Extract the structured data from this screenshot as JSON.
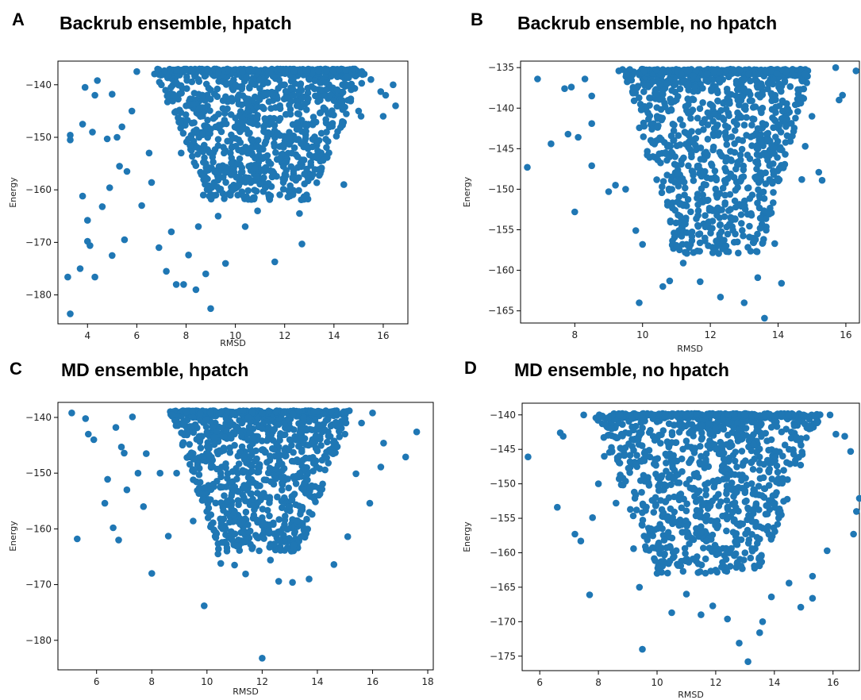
{
  "chart_data": [
    {
      "panel": "A",
      "title": "Backrub ensemble, hpatch",
      "type": "scatter",
      "xlabel": "RMSD",
      "ylabel": "Energy",
      "xlim": [
        2.8,
        17.0
      ],
      "ylim": [
        -185.5,
        -135.5
      ],
      "xticks": [
        4,
        6,
        8,
        10,
        12,
        14,
        16
      ],
      "yticks": [
        -180,
        -170,
        -160,
        -150,
        -140
      ],
      "color": "#1f77b4",
      "points": [
        [
          3.3,
          -183.6
        ],
        [
          3.2,
          -176.6
        ],
        [
          3.3,
          -150.5
        ],
        [
          3.3,
          -149.6
        ],
        [
          3.7,
          -175.0
        ],
        [
          3.8,
          -161.2
        ],
        [
          3.8,
          -147.5
        ],
        [
          3.9,
          -140.5
        ],
        [
          4.0,
          -169.8
        ],
        [
          4.0,
          -165.8
        ],
        [
          4.1,
          -170.6
        ],
        [
          4.2,
          -149.0
        ],
        [
          4.3,
          -176.6
        ],
        [
          4.3,
          -142.0
        ],
        [
          4.4,
          -139.2
        ],
        [
          4.6,
          -163.2
        ],
        [
          4.8,
          -150.3
        ],
        [
          4.9,
          -159.6
        ],
        [
          5.0,
          -172.5
        ],
        [
          5.0,
          -141.8
        ],
        [
          5.2,
          -150.0
        ],
        [
          5.3,
          -155.5
        ],
        [
          5.4,
          -148.0
        ],
        [
          5.5,
          -169.5
        ],
        [
          5.6,
          -156.5
        ],
        [
          5.8,
          -145.0
        ],
        [
          6.0,
          -137.5
        ],
        [
          6.2,
          -163.0
        ],
        [
          6.5,
          -153.0
        ],
        [
          6.6,
          -158.6
        ],
        [
          6.9,
          -171.0
        ],
        [
          7.2,
          -175.5
        ],
        [
          7.4,
          -168.0
        ],
        [
          7.6,
          -178.0
        ],
        [
          7.9,
          -178.0
        ],
        [
          8.1,
          -172.4
        ],
        [
          8.4,
          -179.0
        ],
        [
          8.5,
          -167.0
        ],
        [
          8.7,
          -161.0
        ],
        [
          8.8,
          -176.0
        ],
        [
          9.0,
          -182.6
        ],
        [
          9.3,
          -165.0
        ],
        [
          9.6,
          -174.0
        ],
        [
          9.9,
          -160.0
        ],
        [
          10.4,
          -167.0
        ],
        [
          10.9,
          -164.0
        ],
        [
          11.6,
          -173.7
        ],
        [
          12.0,
          -158.0
        ],
        [
          12.4,
          -152.0
        ],
        [
          12.6,
          -164.5
        ],
        [
          12.7,
          -170.3
        ],
        [
          13.3,
          -151.0
        ],
        [
          13.7,
          -149.0
        ],
        [
          14.4,
          -159.0
        ],
        [
          15.1,
          -146.0
        ],
        [
          15.9,
          -141.3
        ],
        [
          16.1,
          -142.0
        ],
        [
          16.4,
          -140.0
        ],
        [
          16.5,
          -144.0
        ],
        [
          7.0,
          -140.0
        ],
        [
          7.5,
          -142.0
        ],
        [
          8.0,
          -144.0
        ],
        [
          8.5,
          -139.0
        ],
        [
          9.0,
          -141.0
        ],
        [
          9.5,
          -143.0
        ],
        [
          10.0,
          -140.0
        ],
        [
          10.5,
          -145.0
        ],
        [
          11.0,
          -139.0
        ],
        [
          11.5,
          -142.0
        ],
        [
          12.0,
          -140.0
        ],
        [
          12.5,
          -144.0
        ],
        [
          13.0,
          -139.0
        ],
        [
          13.5,
          -141.0
        ],
        [
          14.0,
          -143.0
        ],
        [
          14.5,
          -140.0
        ],
        [
          15.0,
          -145.0
        ],
        [
          15.5,
          -139.0
        ],
        [
          16.0,
          -146.0
        ],
        [
          8.2,
          -150.0
        ],
        [
          9.2,
          -148.0
        ],
        [
          10.2,
          -151.0
        ],
        [
          11.2,
          -149.0
        ],
        [
          12.2,
          -150.0
        ],
        [
          13.2,
          -147.0
        ],
        [
          7.8,
          -153.0
        ],
        [
          8.8,
          -155.0
        ],
        [
          9.8,
          -153.0
        ],
        [
          10.8,
          -156.0
        ],
        [
          11.8,
          -154.0
        ],
        [
          12.8,
          -157.0
        ]
      ],
      "dense_region": {
        "x": [
          6.6,
          15.4
        ],
        "y": [
          -162,
          -137
        ],
        "top_ceiling": -137
      }
    },
    {
      "panel": "B",
      "title": "Backrub ensemble, no hpatch",
      "type": "scatter",
      "xlabel": "RMSD",
      "ylabel": "Energy",
      "xlim": [
        6.4,
        16.4
      ],
      "ylim": [
        -166.5,
        -134.2
      ],
      "xticks": [
        8,
        10,
        12,
        14,
        16
      ],
      "yticks": [
        -165,
        -160,
        -155,
        -150,
        -145,
        -140,
        -135
      ],
      "color": "#1f77b4",
      "points": [
        [
          6.6,
          -147.3
        ],
        [
          6.9,
          -136.4
        ],
        [
          7.3,
          -144.4
        ],
        [
          7.7,
          -137.6
        ],
        [
          7.8,
          -143.2
        ],
        [
          7.9,
          -137.4
        ],
        [
          8.0,
          -152.8
        ],
        [
          8.1,
          -143.6
        ],
        [
          8.3,
          -136.4
        ],
        [
          8.5,
          -147.1
        ],
        [
          8.5,
          -138.5
        ],
        [
          8.5,
          -141.9
        ],
        [
          9.0,
          -150.3
        ],
        [
          9.2,
          -149.5
        ],
        [
          9.3,
          -135.4
        ],
        [
          9.5,
          -150.0
        ],
        [
          9.8,
          -155.1
        ],
        [
          9.9,
          -164.0
        ],
        [
          10.0,
          -156.8
        ],
        [
          10.6,
          -162.0
        ],
        [
          10.8,
          -161.3
        ],
        [
          11.2,
          -159.1
        ],
        [
          11.7,
          -161.4
        ],
        [
          12.3,
          -163.3
        ],
        [
          12.8,
          -156.5
        ],
        [
          13.0,
          -164.0
        ],
        [
          13.4,
          -160.9
        ],
        [
          13.6,
          -165.9
        ],
        [
          13.9,
          -156.7
        ],
        [
          14.1,
          -161.6
        ],
        [
          14.7,
          -148.8
        ],
        [
          14.8,
          -144.7
        ],
        [
          15.2,
          -147.9
        ],
        [
          15.3,
          -148.9
        ],
        [
          15.7,
          -135.0
        ],
        [
          15.8,
          -139.0
        ],
        [
          15.9,
          -138.4
        ],
        [
          16.3,
          -135.4
        ],
        [
          10.5,
          -137.0
        ],
        [
          11.0,
          -139.0
        ],
        [
          11.5,
          -136.0
        ],
        [
          12.0,
          -141.0
        ],
        [
          12.5,
          -138.0
        ],
        [
          13.0,
          -140.0
        ],
        [
          13.5,
          -137.0
        ],
        [
          14.0,
          -142.0
        ],
        [
          14.5,
          -136.0
        ],
        [
          15.0,
          -141.0
        ],
        [
          10.8,
          -146.0
        ],
        [
          11.8,
          -148.0
        ],
        [
          12.8,
          -147.0
        ],
        [
          13.8,
          -149.0
        ],
        [
          11.2,
          -152.0
        ],
        [
          12.2,
          -151.0
        ],
        [
          13.2,
          -153.0
        ]
      ],
      "dense_region": {
        "x": [
          9.4,
          15.0
        ],
        "y": [
          -158,
          -135
        ],
        "top_ceiling": -135.2
      }
    },
    {
      "panel": "C",
      "title": "MD ensemble, hpatch",
      "type": "scatter",
      "xlabel": "RMSD",
      "ylabel": "Energy",
      "xlim": [
        4.6,
        18.2
      ],
      "ylim": [
        -185.3,
        -137.3
      ],
      "xticks": [
        6,
        8,
        10,
        12,
        14,
        16,
        18
      ],
      "yticks": [
        -180,
        -170,
        -160,
        -150,
        -140
      ],
      "color": "#1f77b4",
      "points": [
        [
          5.1,
          -139.2
        ],
        [
          5.3,
          -161.8
        ],
        [
          5.6,
          -140.2
        ],
        [
          5.7,
          -143.0
        ],
        [
          5.9,
          -144.0
        ],
        [
          6.3,
          -155.4
        ],
        [
          6.4,
          -151.1
        ],
        [
          6.6,
          -159.8
        ],
        [
          6.7,
          -141.8
        ],
        [
          6.8,
          -162.0
        ],
        [
          6.9,
          -145.3
        ],
        [
          7.0,
          -146.4
        ],
        [
          7.1,
          -153.0
        ],
        [
          7.3,
          -139.9
        ],
        [
          7.5,
          -150.0
        ],
        [
          7.7,
          -156.0
        ],
        [
          7.8,
          -146.5
        ],
        [
          8.0,
          -168.0
        ],
        [
          8.3,
          -150.0
        ],
        [
          8.6,
          -161.3
        ],
        [
          8.9,
          -150.0
        ],
        [
          9.5,
          -158.6
        ],
        [
          9.9,
          -173.8
        ],
        [
          10.4,
          -164.5
        ],
        [
          10.5,
          -166.2
        ],
        [
          11.0,
          -166.5
        ],
        [
          11.4,
          -168.1
        ],
        [
          12.0,
          -183.2
        ],
        [
          12.3,
          -165.6
        ],
        [
          12.6,
          -169.4
        ],
        [
          13.1,
          -169.6
        ],
        [
          13.7,
          -169.0
        ],
        [
          14.6,
          -166.4
        ],
        [
          15.1,
          -161.4
        ],
        [
          15.4,
          -150.1
        ],
        [
          15.9,
          -155.4
        ],
        [
          16.3,
          -148.9
        ],
        [
          16.4,
          -144.6
        ],
        [
          17.2,
          -147.1
        ],
        [
          17.6,
          -142.6
        ],
        [
          16.0,
          -139.2
        ],
        [
          15.6,
          -141.0
        ],
        [
          9.5,
          -140.0
        ],
        [
          10.0,
          -143.0
        ],
        [
          10.5,
          -139.0
        ],
        [
          11.0,
          -145.0
        ],
        [
          11.5,
          -140.0
        ],
        [
          12.0,
          -142.0
        ],
        [
          12.5,
          -139.0
        ],
        [
          13.0,
          -144.0
        ],
        [
          13.5,
          -140.0
        ],
        [
          14.0,
          -146.0
        ],
        [
          14.5,
          -139.0
        ],
        [
          15.0,
          -143.0
        ],
        [
          10.5,
          -150.0
        ],
        [
          11.5,
          -152.0
        ],
        [
          12.5,
          -151.0
        ],
        [
          13.5,
          -153.0
        ],
        [
          11.0,
          -157.0
        ],
        [
          12.0,
          -158.0
        ],
        [
          13.0,
          -156.0
        ]
      ],
      "dense_region": {
        "x": [
          8.6,
          15.2
        ],
        "y": [
          -164,
          -138.8
        ],
        "top_ceiling": -138.8
      }
    },
    {
      "panel": "D",
      "title": "MD ensemble, no hpatch",
      "type": "scatter",
      "xlabel": "RMSD",
      "ylabel": "Energy",
      "xlim": [
        5.4,
        16.9
      ],
      "ylim": [
        -177.1,
        -138.3
      ],
      "xticks": [
        6,
        8,
        10,
        12,
        14,
        16
      ],
      "yticks": [
        -175,
        -170,
        -165,
        -160,
        -155,
        -150,
        -145,
        -140
      ],
      "color": "#1f77b4",
      "points": [
        [
          5.6,
          -146.1
        ],
        [
          6.6,
          -153.4
        ],
        [
          6.7,
          -142.6
        ],
        [
          6.8,
          -143.1
        ],
        [
          7.2,
          -157.3
        ],
        [
          7.4,
          -158.3
        ],
        [
          7.5,
          -140.0
        ],
        [
          7.7,
          -166.1
        ],
        [
          7.8,
          -154.9
        ],
        [
          8.0,
          -150.0
        ],
        [
          8.2,
          -146.0
        ],
        [
          8.6,
          -152.8
        ],
        [
          9.2,
          -159.4
        ],
        [
          9.4,
          -165.0
        ],
        [
          9.5,
          -174.0
        ],
        [
          10.0,
          -163.0
        ],
        [
          10.5,
          -168.7
        ],
        [
          11.0,
          -166.0
        ],
        [
          11.5,
          -169.0
        ],
        [
          11.9,
          -167.7
        ],
        [
          12.4,
          -169.6
        ],
        [
          12.8,
          -173.1
        ],
        [
          13.1,
          -175.8
        ],
        [
          13.5,
          -171.6
        ],
        [
          13.6,
          -170.0
        ],
        [
          13.9,
          -166.4
        ],
        [
          14.5,
          -164.4
        ],
        [
          14.9,
          -167.9
        ],
        [
          15.3,
          -166.6
        ],
        [
          15.3,
          -163.4
        ],
        [
          15.8,
          -159.7
        ],
        [
          15.9,
          -140.0
        ],
        [
          16.1,
          -142.8
        ],
        [
          16.4,
          -143.1
        ],
        [
          16.6,
          -145.3
        ],
        [
          16.8,
          -154.0
        ],
        [
          16.9,
          -152.1
        ],
        [
          16.7,
          -157.3
        ],
        [
          10.0,
          -141.0
        ],
        [
          10.5,
          -144.0
        ],
        [
          11.0,
          -140.0
        ],
        [
          11.5,
          -146.0
        ],
        [
          12.0,
          -142.0
        ],
        [
          12.5,
          -144.0
        ],
        [
          13.0,
          -140.0
        ],
        [
          13.5,
          -147.0
        ],
        [
          14.0,
          -141.0
        ],
        [
          14.5,
          -145.0
        ],
        [
          15.0,
          -140.0
        ],
        [
          11.0,
          -150.0
        ],
        [
          12.0,
          -152.0
        ],
        [
          13.0,
          -151.0
        ],
        [
          14.0,
          -153.0
        ],
        [
          11.5,
          -157.0
        ],
        [
          12.5,
          -160.0
        ],
        [
          13.5,
          -158.0
        ]
      ],
      "dense_region": {
        "x": [
          7.8,
          15.6
        ],
        "y": [
          -163,
          -139.8
        ],
        "top_ceiling": -139.8
      }
    }
  ]
}
